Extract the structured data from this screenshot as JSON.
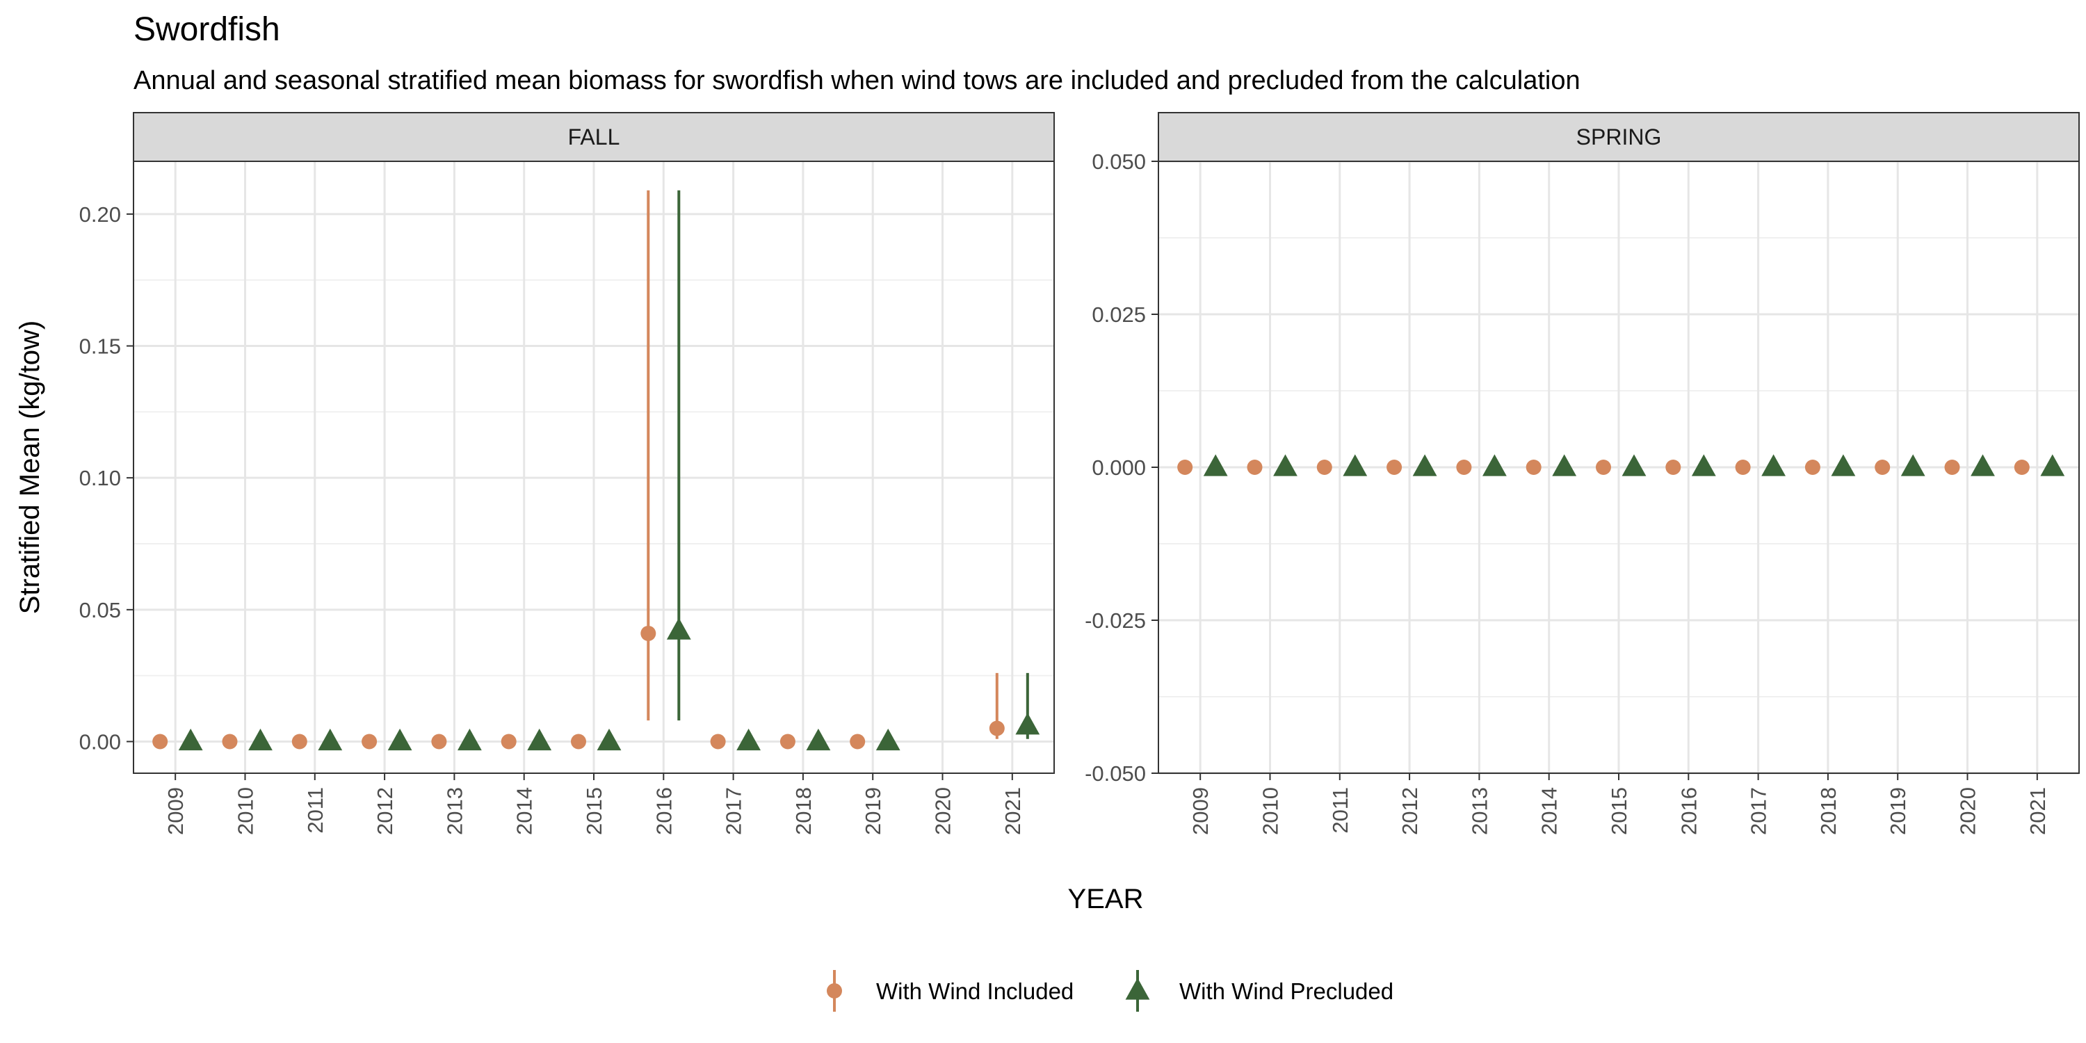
{
  "chart_data": {
    "type": "scatter",
    "title": "Swordfish",
    "subtitle": "Annual and seasonal stratified mean biomass for swordfish when wind tows are included and precluded from the calculation",
    "xlabel": "YEAR",
    "ylabel": "Stratified Mean (kg/tow)",
    "legend_position": "bottom",
    "grid": true,
    "series_styles": [
      {
        "name": "With Wind Included",
        "color": "#D4875C",
        "marker": "circle"
      },
      {
        "name": "With Wind Precluded",
        "color": "#3B6538",
        "marker": "triangle"
      }
    ],
    "panels": [
      {
        "name": "FALL",
        "x": [
          "2009",
          "2010",
          "2011",
          "2012",
          "2013",
          "2014",
          "2015",
          "2016",
          "2017",
          "2018",
          "2019",
          "2020",
          "2021"
        ],
        "ylim": [
          -0.012,
          0.22
        ],
        "yticks": [
          0.0,
          0.05,
          0.1,
          0.15,
          0.2
        ],
        "ytick_labels": [
          "0.00",
          "0.05",
          "0.10",
          "0.15",
          "0.20"
        ],
        "series": [
          {
            "name": "With Wind Included",
            "values": [
              0.0,
              0.0,
              0.0,
              0.0,
              0.0,
              0.0,
              0.0,
              0.041,
              0.0,
              0.0,
              0.0,
              null,
              0.005
            ],
            "lower": [
              0.0,
              0.0,
              0.0,
              0.0,
              0.0,
              0.0,
              0.0,
              0.008,
              0.0,
              0.0,
              0.0,
              null,
              0.001
            ],
            "upper": [
              0.0,
              0.0,
              0.0,
              0.0,
              0.0,
              0.0,
              0.0,
              0.209,
              0.0,
              0.0,
              0.0,
              null,
              0.026
            ]
          },
          {
            "name": "With Wind Precluded",
            "values": [
              0.0,
              0.0,
              0.0,
              0.0,
              0.0,
              0.0,
              0.0,
              0.042,
              0.0,
              0.0,
              0.0,
              null,
              0.006
            ],
            "lower": [
              0.0,
              0.0,
              0.0,
              0.0,
              0.0,
              0.0,
              0.0,
              0.008,
              0.0,
              0.0,
              0.0,
              null,
              0.001
            ],
            "upper": [
              0.0,
              0.0,
              0.0,
              0.0,
              0.0,
              0.0,
              0.0,
              0.209,
              0.0,
              0.0,
              0.0,
              null,
              0.026
            ]
          }
        ]
      },
      {
        "name": "SPRING",
        "x": [
          "2009",
          "2010",
          "2011",
          "2012",
          "2013",
          "2014",
          "2015",
          "2016",
          "2017",
          "2018",
          "2019",
          "2020",
          "2021"
        ],
        "ylim": [
          -0.05,
          0.05
        ],
        "yticks": [
          -0.05,
          -0.025,
          0.0,
          0.025,
          0.05
        ],
        "ytick_labels": [
          "-0.050",
          "-0.025",
          "0.000",
          "0.025",
          "0.050"
        ],
        "series": [
          {
            "name": "With Wind Included",
            "values": [
              0.0,
              0.0,
              0.0,
              0.0,
              0.0,
              0.0,
              0.0,
              0.0,
              0.0,
              0.0,
              0.0,
              0.0,
              0.0
            ],
            "lower": [
              0.0,
              0.0,
              0.0,
              0.0,
              0.0,
              0.0,
              0.0,
              0.0,
              0.0,
              0.0,
              0.0,
              0.0,
              0.0
            ],
            "upper": [
              0.0,
              0.0,
              0.0,
              0.0,
              0.0,
              0.0,
              0.0,
              0.0,
              0.0,
              0.0,
              0.0,
              0.0,
              0.0
            ]
          },
          {
            "name": "With Wind Precluded",
            "values": [
              0.0,
              0.0,
              0.0,
              0.0,
              0.0,
              0.0,
              0.0,
              0.0,
              0.0,
              0.0,
              0.0,
              0.0,
              0.0
            ],
            "lower": [
              0.0,
              0.0,
              0.0,
              0.0,
              0.0,
              0.0,
              0.0,
              0.0,
              0.0,
              0.0,
              0.0,
              0.0,
              0.0
            ],
            "upper": [
              0.0,
              0.0,
              0.0,
              0.0,
              0.0,
              0.0,
              0.0,
              0.0,
              0.0,
              0.0,
              0.0,
              0.0,
              0.0
            ]
          }
        ]
      }
    ]
  }
}
